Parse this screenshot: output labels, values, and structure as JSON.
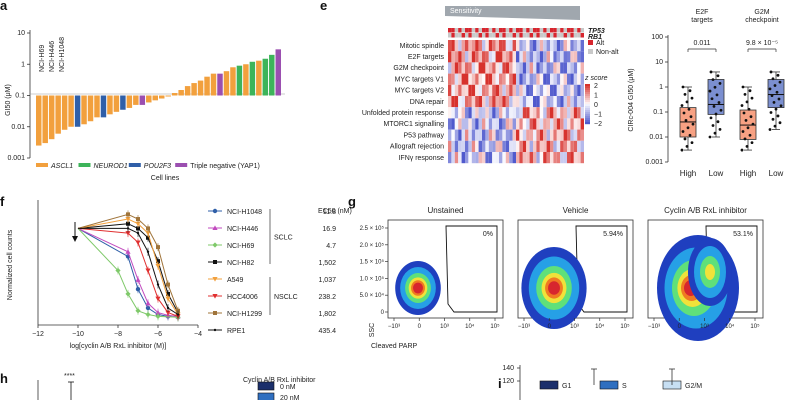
{
  "panel_labels": {
    "a": "a",
    "e": "e",
    "f": "f",
    "g": "g",
    "h": "h",
    "i": "i"
  },
  "colors": {
    "ascl1": "#f2a03d",
    "neurod1": "#3db45a",
    "pou2f3": "#2f5fa8",
    "yap1": "#9b4fb0",
    "high": "#f7a183",
    "low": "#7b8fd0",
    "sclc_line1": "#2f5fa8"
  },
  "chart_data": [
    {
      "type": "bar",
      "id": "panel-a",
      "ylabel": "GI50 (μM)",
      "xlabel": "Cell lines",
      "yscale": "log",
      "ylim": [
        0.001,
        10
      ],
      "yticks": [
        "10",
        "1",
        "0.1",
        "0.01",
        "0.001"
      ],
      "bar_labels": [
        "NCI-H69",
        "NCI-H446",
        "NCI-H1048"
      ],
      "legend": [
        {
          "name": "ASCL1",
          "italic": true
        },
        {
          "name": "NEUROD1",
          "italic": true
        },
        {
          "name": "POU2F3",
          "italic": true
        },
        {
          "name": "Triple negative (YAP1)",
          "italic": false
        }
      ],
      "series": [
        {
          "name": "ASCL1",
          "values": [
            0.0025,
            0.003,
            0.004,
            0.006,
            0.008,
            0.01,
            0.012,
            0.015,
            0.02,
            0.025,
            0.03,
            0.04,
            0.05,
            0.06,
            0.07,
            0.08,
            0.1,
            0.12,
            0.15,
            0.2,
            0.25,
            0.3,
            0.4,
            0.5,
            0.6,
            0.8,
            1.0,
            1.3
          ]
        },
        {
          "name": "NEUROD1",
          "values": [
            0.9,
            1.2,
            1.5,
            2.0
          ]
        },
        {
          "name": "POU2F3",
          "values": [
            0.01,
            0.02,
            0.035
          ]
        },
        {
          "name": "Triple negative (YAP1)",
          "values": [
            0.05,
            0.5,
            3.0
          ]
        }
      ]
    },
    {
      "type": "heatmap",
      "id": "panel-e",
      "header": "Sensitivity",
      "rows": [
        "Mitotic spindle",
        "E2F targets",
        "G2M checkpoint",
        "MYC targets V1",
        "MYC targets V2",
        "DNA repair",
        "Unfolded protein response",
        "MTORC1 signalling",
        "P53 pathway",
        "Allograft rejection",
        "IFNγ response"
      ],
      "annotation_rows": [
        "TP53",
        "RB1"
      ],
      "annotation_legend": [
        "Alt",
        "Non-alt"
      ],
      "colorbar_title": "z score",
      "colorbar_ticks": [
        "2",
        "1",
        "0",
        "−1",
        "−2"
      ]
    },
    {
      "type": "box",
      "id": "panel-e-box",
      "ylabel": "CIRc-004 GI50 (μM)",
      "yticks": [
        "100",
        "10",
        "1",
        "0.1",
        "0.01",
        "0.001"
      ],
      "groups": [
        "E2F targets",
        "G2M checkpoint"
      ],
      "categories": [
        "High",
        "Low",
        "High",
        "Low"
      ],
      "pvalues": [
        "0.011",
        "9.8 × 10⁻⁵"
      ],
      "boxes": [
        {
          "group": "E2F targets",
          "category": "High",
          "min": 0.003,
          "q1": 0.01,
          "median": 0.04,
          "q3": 0.15,
          "max": 1.0
        },
        {
          "group": "E2F targets",
          "category": "Low",
          "min": 0.01,
          "q1": 0.08,
          "median": 0.2,
          "q3": 2.0,
          "max": 4.0
        },
        {
          "group": "G2M checkpoint",
          "category": "High",
          "min": 0.003,
          "q1": 0.008,
          "median": 0.03,
          "q3": 0.12,
          "max": 1.0
        },
        {
          "group": "G2M checkpoint",
          "category": "Low",
          "min": 0.02,
          "q1": 0.15,
          "median": 0.5,
          "q3": 2.0,
          "max": 4.0
        }
      ]
    },
    {
      "type": "line",
      "id": "panel-f",
      "xlabel": "log[cyclin A/B RxL inhibitor (M)]",
      "ylabel": "Normalized cell counts",
      "xticks": [
        "−12",
        "−10",
        "−8",
        "−6",
        "−4"
      ],
      "ec50_header": "EC50 (nM)",
      "groups": [
        "SCLC",
        "NSCLC"
      ],
      "series": [
        {
          "name": "NCI-H1048",
          "group": "SCLC",
          "ec50": "11.8",
          "color": "#2f5fa8",
          "marker": "circle",
          "x": [
            -10,
            -7.5,
            -7,
            -6.5,
            -6,
            -5.5,
            -5
          ],
          "y": [
            1.0,
            0.7,
            0.35,
            0.15,
            0.08,
            0.06,
            0.05
          ]
        },
        {
          "name": "NCI-H446",
          "group": "SCLC",
          "ec50": "16.9",
          "color": "#c24bbf",
          "marker": "triangle",
          "x": [
            -10,
            -7.5,
            -7,
            -6.5,
            -6,
            -5.5,
            -5
          ],
          "y": [
            1.0,
            0.75,
            0.45,
            0.2,
            0.1,
            0.07,
            0.06
          ]
        },
        {
          "name": "NCI-H69",
          "group": "SCLC",
          "ec50": "4.7",
          "color": "#7fc96a",
          "marker": "diamond",
          "x": [
            -10,
            -8,
            -7.5,
            -7,
            -6.5,
            -6,
            -5
          ],
          "y": [
            1.0,
            0.55,
            0.3,
            0.12,
            0.08,
            0.06,
            0.05
          ]
        },
        {
          "name": "NCI-H82",
          "group": "SCLC",
          "ec50": "1,502",
          "color": "#111111",
          "marker": "square",
          "x": [
            -10,
            -7.5,
            -7,
            -6.5,
            -6,
            -5.5,
            -5
          ],
          "y": [
            1.0,
            1.05,
            1.0,
            0.9,
            0.65,
            0.3,
            0.1
          ]
        },
        {
          "name": "A549",
          "group": "NSCLC",
          "ec50": "1,037",
          "color": "#f2a03d",
          "marker": "triangle-down",
          "x": [
            -10,
            -7.5,
            -7,
            -6.5,
            -6,
            -5.5,
            -5
          ],
          "y": [
            1.0,
            1.1,
            1.05,
            0.95,
            0.6,
            0.25,
            0.08
          ]
        },
        {
          "name": "HCC4006",
          "group": "NSCLC",
          "ec50": "238.2",
          "color": "#e03030",
          "marker": "triangle-down",
          "x": [
            -10,
            -7.5,
            -7,
            -6.5,
            -6,
            -5.5,
            -5
          ],
          "y": [
            1.0,
            0.95,
            0.85,
            0.55,
            0.25,
            0.1,
            0.06
          ]
        },
        {
          "name": "NCI-H1299",
          "group": "NSCLC",
          "ec50": "1,802",
          "color": "#a0743a",
          "marker": "square",
          "x": [
            -10,
            -7.5,
            -7,
            -6.5,
            -6,
            -5.5,
            -5
          ],
          "y": [
            1.0,
            1.15,
            1.1,
            1.0,
            0.8,
            0.4,
            0.12
          ]
        },
        {
          "name": "RPE1",
          "group": "",
          "ec50": "435.4",
          "color": "#111111",
          "marker": "dot",
          "x": [
            -10,
            -7.5,
            -7,
            -6.5,
            -6,
            -5.5,
            -5
          ],
          "y": [
            1.0,
            1.0,
            0.95,
            0.75,
            0.4,
            0.15,
            0.08
          ]
        }
      ]
    },
    {
      "type": "scatter",
      "id": "panel-g",
      "xlabel": "Cleaved PARP",
      "ylabel": "SSC",
      "panels": [
        {
          "title": "Unstained",
          "gate_percent": "0%"
        },
        {
          "title": "Vehicle",
          "gate_percent": "5.94%"
        },
        {
          "title": "Cyclin A/B RxL inhibitor",
          "gate_percent": "53.1%"
        }
      ],
      "yticks": [
        "2.5 × 10⁵",
        "2.0 × 10⁵",
        "1.5 × 10⁵",
        "1.0 × 10⁵",
        "5.0 × 10⁴",
        "0"
      ],
      "xticks": [
        "−10³",
        "0",
        "10³",
        "10⁴",
        "10⁵"
      ]
    },
    {
      "type": "bar",
      "id": "panel-h",
      "significance": "****",
      "legend_title": "Cyclin A/B RxL inhibitor",
      "legend": [
        "0 nM",
        "20 nM"
      ]
    },
    {
      "type": "bar",
      "id": "panel-i",
      "yticks": [
        "140",
        "120"
      ],
      "legend": [
        "G1",
        "S",
        "G2/M"
      ]
    }
  ]
}
